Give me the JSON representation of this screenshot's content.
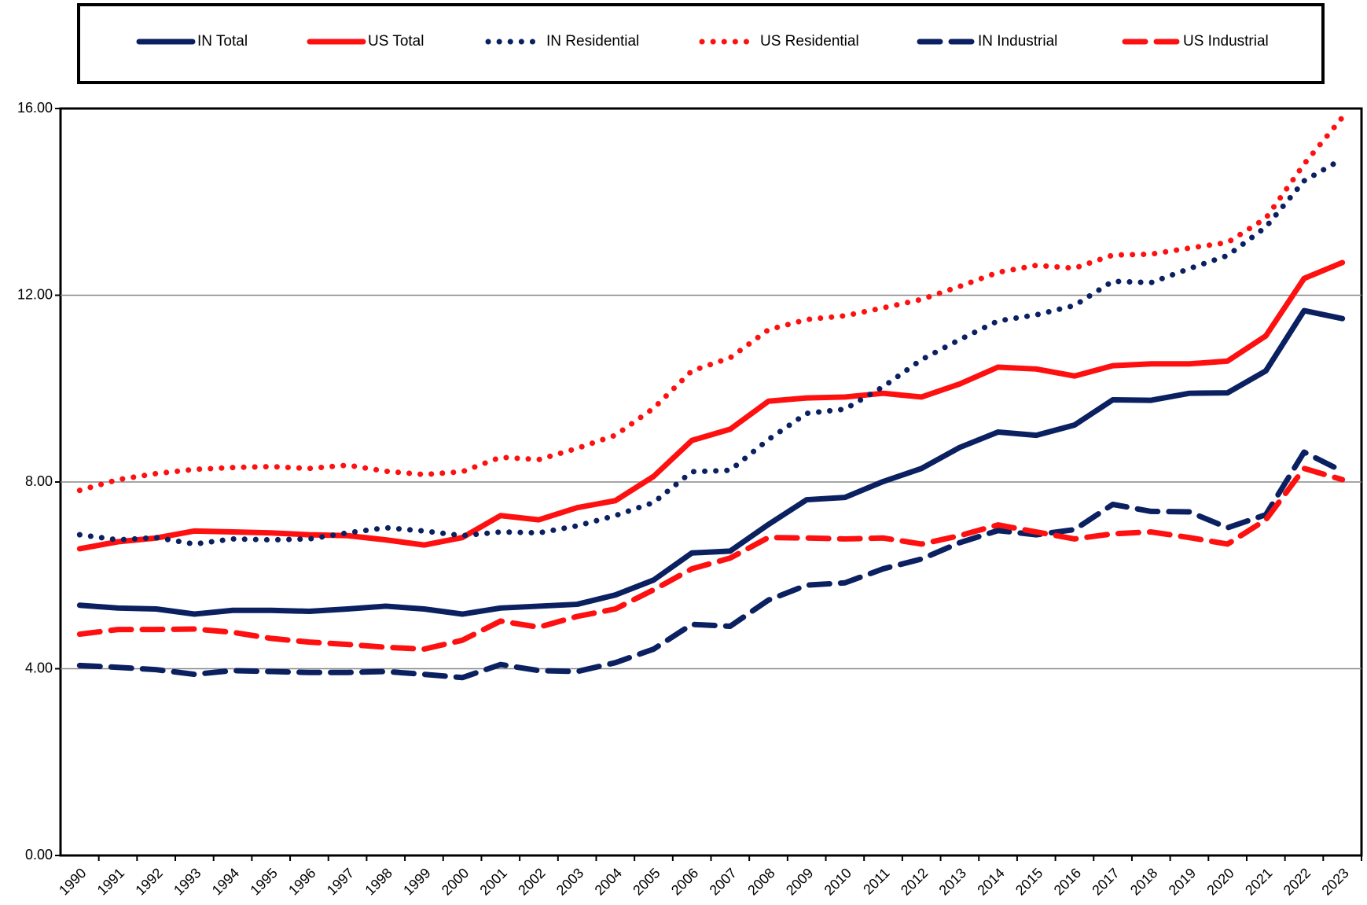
{
  "chart_data": {
    "type": "line",
    "categories": [
      "1990",
      "1991",
      "1992",
      "1993",
      "1994",
      "1995",
      "1996",
      "1997",
      "1998",
      "1999",
      "2000",
      "2001",
      "2002",
      "2003",
      "2004",
      "2005",
      "2006",
      "2007",
      "2008",
      "2009",
      "2010",
      "2011",
      "2012",
      "2013",
      "2014",
      "2015",
      "2016",
      "2017",
      "2018",
      "2019",
      "2020",
      "2021",
      "2022",
      "2023"
    ],
    "ylim": [
      0,
      16
    ],
    "yticks": [
      {
        "value": 0,
        "label": "0.00"
      },
      {
        "value": 4,
        "label": "4.00"
      },
      {
        "value": 8,
        "label": "8.00"
      },
      {
        "value": 12,
        "label": "12.00"
      },
      {
        "value": 16,
        "label": "16.00"
      }
    ],
    "grid": true,
    "legend": "top",
    "series": [
      {
        "name": "IN Total",
        "color": "#0b2060",
        "dash": "solid",
        "values": [
          5.36,
          5.3,
          5.28,
          5.17,
          5.25,
          5.25,
          5.23,
          5.28,
          5.34,
          5.28,
          5.17,
          5.3,
          5.34,
          5.38,
          5.58,
          5.9,
          6.48,
          6.52,
          7.09,
          7.62,
          7.67,
          8.01,
          8.29,
          8.74,
          9.07,
          9.0,
          9.22,
          9.76,
          9.75,
          9.9,
          9.91,
          10.38,
          11.67,
          11.5
        ]
      },
      {
        "name": "US Total",
        "color": "#ff1010",
        "dash": "solid",
        "values": [
          6.57,
          6.72,
          6.8,
          6.95,
          6.93,
          6.91,
          6.87,
          6.85,
          6.76,
          6.65,
          6.81,
          7.28,
          7.19,
          7.45,
          7.6,
          8.12,
          8.89,
          9.13,
          9.73,
          9.8,
          9.82,
          9.9,
          9.82,
          10.1,
          10.46,
          10.42,
          10.27,
          10.49,
          10.53,
          10.53,
          10.59,
          11.13,
          12.36,
          12.7
        ]
      },
      {
        "name": "IN Residential",
        "color": "#0b2060",
        "dash": "dotted",
        "values": [
          6.87,
          6.76,
          6.81,
          6.67,
          6.78,
          6.76,
          6.78,
          6.91,
          7.02,
          6.95,
          6.85,
          6.93,
          6.91,
          7.06,
          7.28,
          7.56,
          8.22,
          8.25,
          8.91,
          9.47,
          9.56,
          10.04,
          10.62,
          11.05,
          11.45,
          11.58,
          11.78,
          12.3,
          12.27,
          12.57,
          12.85,
          13.46,
          14.45,
          14.92
        ]
      },
      {
        "name": "US Residential",
        "color": "#ff1010",
        "dash": "dotted",
        "values": [
          7.82,
          8.05,
          8.18,
          8.27,
          8.31,
          8.33,
          8.29,
          8.36,
          8.23,
          8.16,
          8.22,
          8.53,
          8.48,
          8.72,
          9.0,
          9.58,
          10.38,
          10.66,
          11.26,
          11.48,
          11.56,
          11.73,
          11.91,
          12.19,
          12.49,
          12.64,
          12.58,
          12.86,
          12.88,
          13.01,
          13.13,
          13.65,
          14.81,
          15.81
        ]
      },
      {
        "name": "IN Industrial",
        "color": "#0b2060",
        "dash": "dashed",
        "values": [
          4.07,
          4.03,
          3.98,
          3.88,
          3.96,
          3.94,
          3.92,
          3.92,
          3.94,
          3.88,
          3.81,
          4.09,
          3.96,
          3.94,
          4.13,
          4.42,
          4.95,
          4.91,
          5.47,
          5.79,
          5.84,
          6.14,
          6.35,
          6.7,
          6.96,
          6.87,
          6.98,
          7.52,
          7.37,
          7.36,
          7.02,
          7.3,
          8.64,
          8.23
        ]
      },
      {
        "name": "US Industrial",
        "color": "#ff1010",
        "dash": "dashed",
        "values": [
          4.74,
          4.84,
          4.84,
          4.85,
          4.78,
          4.65,
          4.57,
          4.52,
          4.46,
          4.42,
          4.61,
          5.02,
          4.89,
          5.12,
          5.28,
          5.69,
          6.14,
          6.37,
          6.81,
          6.8,
          6.78,
          6.8,
          6.67,
          6.85,
          7.08,
          6.93,
          6.78,
          6.89,
          6.93,
          6.81,
          6.67,
          7.19,
          8.29,
          8.05
        ]
      }
    ]
  }
}
